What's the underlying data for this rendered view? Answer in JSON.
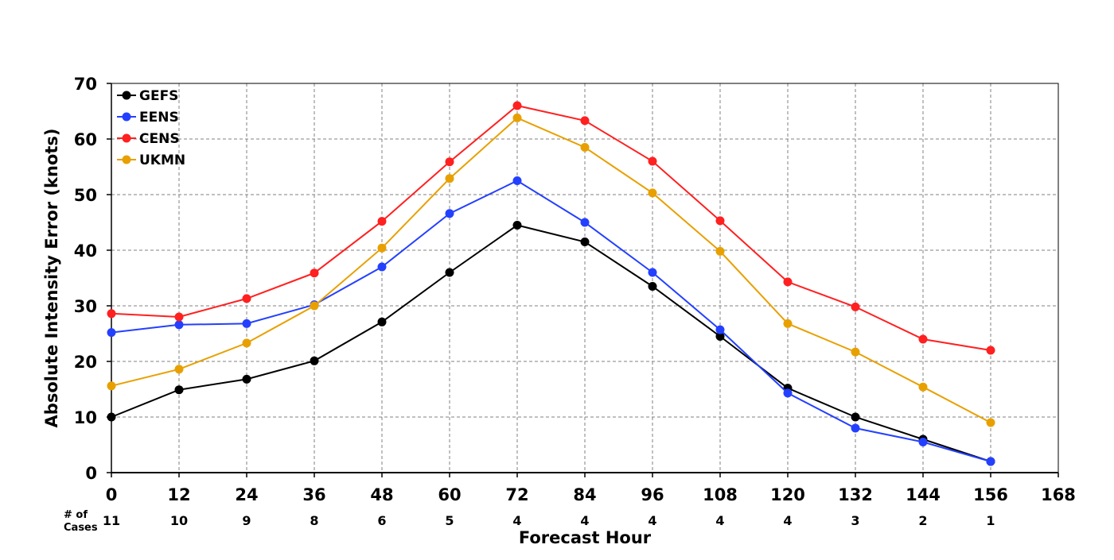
{
  "chart_data": {
    "type": "line",
    "title": "",
    "xlabel": "Forecast Hour",
    "ylabel": "Absolute Intensity Error (knots)",
    "xlim": [
      0,
      168
    ],
    "ylim": [
      0,
      70
    ],
    "x_ticks": [
      0,
      12,
      24,
      36,
      48,
      60,
      72,
      84,
      96,
      108,
      120,
      132,
      144,
      156,
      168
    ],
    "y_ticks": [
      0,
      10,
      20,
      30,
      40,
      50,
      60,
      70
    ],
    "grid": true,
    "legend_position": "top-left",
    "x": [
      0,
      12,
      24,
      36,
      48,
      60,
      72,
      84,
      96,
      108,
      120,
      132,
      144,
      156
    ],
    "series": [
      {
        "name": "GEFS",
        "color": "#000000",
        "values": [
          10.0,
          14.9,
          16.8,
          20.1,
          27.1,
          36.0,
          44.5,
          41.5,
          33.5,
          24.5,
          15.2,
          10.0,
          6.0,
          2.0
        ]
      },
      {
        "name": "EENS",
        "color": "#2440ff",
        "values": [
          25.2,
          26.6,
          26.8,
          30.2,
          37.0,
          46.6,
          52.5,
          45.0,
          36.0,
          25.7,
          14.3,
          8.0,
          5.5,
          2.0
        ]
      },
      {
        "name": "CENS",
        "color": "#ff2020",
        "values": [
          28.6,
          28.0,
          31.3,
          35.9,
          45.2,
          55.9,
          66.0,
          63.3,
          56.0,
          45.3,
          34.3,
          29.8,
          24.0,
          22.0
        ]
      },
      {
        "name": "UKMN",
        "color": "#e8a000",
        "values": [
          15.6,
          18.6,
          23.3,
          30.0,
          40.4,
          52.9,
          63.8,
          58.5,
          50.3,
          39.8,
          26.8,
          21.7,
          15.4,
          9.0
        ]
      }
    ],
    "cases_label": "# of\nCases",
    "cases": [
      11,
      10,
      9,
      8,
      6,
      5,
      4,
      4,
      4,
      4,
      4,
      3,
      2,
      1
    ]
  }
}
